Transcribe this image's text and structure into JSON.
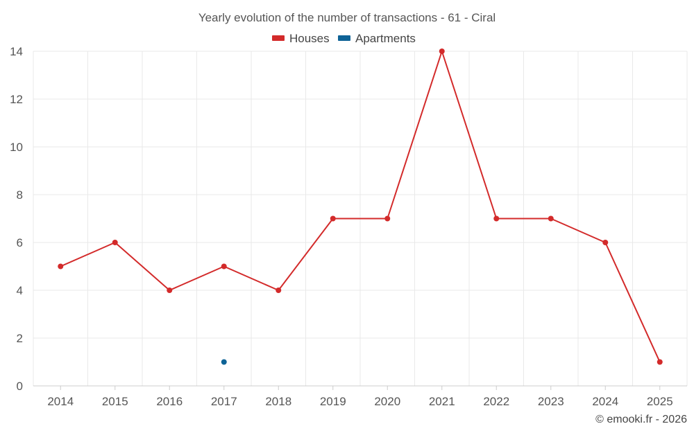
{
  "chart_data": {
    "type": "line",
    "title": "Yearly evolution of the number of transactions - 61 - Ciral",
    "xlabel": "",
    "ylabel": "",
    "categories": [
      "2014",
      "2015",
      "2016",
      "2017",
      "2018",
      "2019",
      "2020",
      "2021",
      "2022",
      "2023",
      "2024",
      "2025"
    ],
    "ylim": [
      0,
      14
    ],
    "yticks": [
      "0",
      "2",
      "4",
      "6",
      "8",
      "10",
      "12",
      "14"
    ],
    "grid": true,
    "legend_position": "top-center",
    "series": [
      {
        "name": "Houses",
        "color": "#d32a2a",
        "values": [
          5,
          6,
          4,
          5,
          4,
          7,
          7,
          14,
          7,
          7,
          6,
          1
        ]
      },
      {
        "name": "Apartments",
        "color": "#0e6396",
        "values": [
          null,
          null,
          null,
          1,
          null,
          null,
          null,
          null,
          null,
          null,
          null,
          null
        ]
      }
    ]
  },
  "credit": "© emooki.fr - 2026"
}
